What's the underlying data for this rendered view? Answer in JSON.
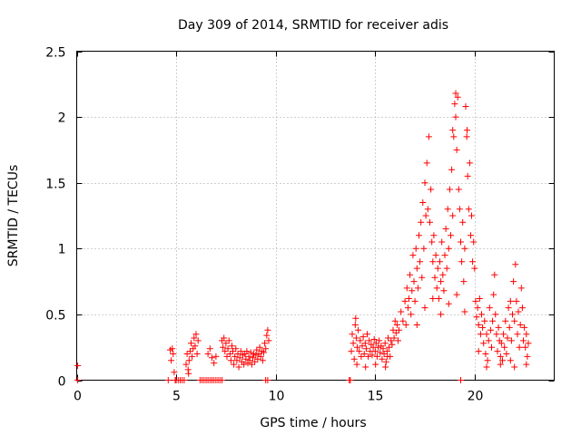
{
  "chart_data": {
    "type": "scatter",
    "title": "Day 309 of 2014, SRMTID for receiver adis",
    "xlabel": "GPS time / hours",
    "ylabel": "SRMTID / TECUs",
    "xlim": [
      0,
      24
    ],
    "ylim": [
      0,
      2.5
    ],
    "xticks": [
      0,
      5,
      10,
      15,
      20
    ],
    "yticks": [
      0,
      0.5,
      1,
      1.5,
      2,
      2.5
    ],
    "xtick_labels": [
      "0",
      "5",
      "10",
      "15",
      "20"
    ],
    "ytick_labels": [
      "0",
      "0.5",
      "1",
      "1.5",
      "2",
      "2.5"
    ],
    "grid": true,
    "marker": "+",
    "color": "#ff0000",
    "series": [
      {
        "name": "SRMTID",
        "points": [
          [
            0.05,
            0.11
          ],
          [
            0.05,
            0.0
          ],
          [
            4.6,
            0.0
          ],
          [
            4.7,
            0.23
          ],
          [
            4.75,
            0.15
          ],
          [
            4.8,
            0.24
          ],
          [
            4.85,
            0.2
          ],
          [
            4.9,
            0.06
          ],
          [
            4.95,
            0.0
          ],
          [
            5.0,
            0.0
          ],
          [
            5.1,
            0.0
          ],
          [
            5.2,
            0.0
          ],
          [
            5.3,
            0.0
          ],
          [
            5.4,
            0.0
          ],
          [
            5.5,
            0.12
          ],
          [
            5.55,
            0.2
          ],
          [
            5.6,
            0.08
          ],
          [
            5.65,
            0.15
          ],
          [
            5.7,
            0.22
          ],
          [
            5.75,
            0.28
          ],
          [
            5.8,
            0.18
          ],
          [
            5.85,
            0.24
          ],
          [
            5.9,
            0.32
          ],
          [
            5.95,
            0.26
          ],
          [
            6.0,
            0.35
          ],
          [
            6.05,
            0.2
          ],
          [
            6.1,
            0.3
          ],
          [
            5.62,
            0.05
          ],
          [
            6.2,
            0.0
          ],
          [
            6.3,
            0.0
          ],
          [
            6.4,
            0.0
          ],
          [
            6.5,
            0.0
          ],
          [
            6.6,
            0.0
          ],
          [
            6.7,
            0.0
          ],
          [
            6.8,
            0.0
          ],
          [
            6.9,
            0.0
          ],
          [
            7.0,
            0.0
          ],
          [
            7.1,
            0.0
          ],
          [
            7.2,
            0.0
          ],
          [
            7.3,
            0.0
          ],
          [
            6.6,
            0.2
          ],
          [
            6.7,
            0.24
          ],
          [
            6.8,
            0.17
          ],
          [
            6.9,
            0.13
          ],
          [
            7.0,
            0.18
          ],
          [
            7.3,
            0.3
          ],
          [
            7.35,
            0.25
          ],
          [
            7.4,
            0.32
          ],
          [
            7.45,
            0.22
          ],
          [
            7.5,
            0.28
          ],
          [
            7.55,
            0.18
          ],
          [
            7.6,
            0.24
          ],
          [
            7.65,
            0.3
          ],
          [
            7.7,
            0.2
          ],
          [
            7.75,
            0.15
          ],
          [
            7.8,
            0.26
          ],
          [
            7.85,
            0.22
          ],
          [
            7.9,
            0.12
          ],
          [
            7.95,
            0.18
          ],
          [
            8.0,
            0.24
          ],
          [
            8.05,
            0.15
          ],
          [
            8.1,
            0.2
          ],
          [
            8.15,
            0.1
          ],
          [
            8.2,
            0.17
          ],
          [
            8.25,
            0.22
          ],
          [
            8.3,
            0.14
          ],
          [
            8.35,
            0.19
          ],
          [
            8.4,
            0.12
          ],
          [
            8.45,
            0.2
          ],
          [
            8.5,
            0.16
          ],
          [
            8.55,
            0.22
          ],
          [
            8.6,
            0.13
          ],
          [
            8.65,
            0.18
          ],
          [
            8.7,
            0.15
          ],
          [
            8.75,
            0.21
          ],
          [
            8.8,
            0.12
          ],
          [
            8.85,
            0.17
          ],
          [
            8.9,
            0.2
          ],
          [
            8.95,
            0.14
          ],
          [
            9.0,
            0.19
          ],
          [
            9.05,
            0.23
          ],
          [
            9.1,
            0.16
          ],
          [
            9.15,
            0.2
          ],
          [
            9.2,
            0.25
          ],
          [
            9.25,
            0.18
          ],
          [
            9.3,
            0.22
          ],
          [
            9.35,
            0.15
          ],
          [
            9.4,
            0.21
          ],
          [
            9.45,
            0.28
          ],
          [
            9.5,
            0.24
          ],
          [
            9.55,
            0.34
          ],
          [
            9.6,
            0.38
          ],
          [
            9.65,
            0.3
          ],
          [
            9.5,
            0.0
          ],
          [
            9.6,
            0.0
          ],
          [
            13.7,
            0.0
          ],
          [
            13.75,
            0.0
          ],
          [
            13.8,
            0.22
          ],
          [
            13.85,
            0.35
          ],
          [
            13.9,
            0.28
          ],
          [
            13.95,
            0.16
          ],
          [
            14.0,
            0.42
          ],
          [
            14.05,
            0.32
          ],
          [
            14.1,
            0.25
          ],
          [
            14.15,
            0.38
          ],
          [
            14.2,
            0.22
          ],
          [
            14.25,
            0.3
          ],
          [
            14.3,
            0.18
          ],
          [
            14.35,
            0.26
          ],
          [
            14.4,
            0.33
          ],
          [
            14.45,
            0.2
          ],
          [
            14.5,
            0.28
          ],
          [
            14.55,
            0.24
          ],
          [
            14.6,
            0.35
          ],
          [
            14.65,
            0.18
          ],
          [
            14.7,
            0.3
          ],
          [
            14.75,
            0.22
          ],
          [
            14.8,
            0.27
          ],
          [
            14.85,
            0.19
          ],
          [
            14.9,
            0.25
          ],
          [
            14.95,
            0.31
          ],
          [
            15.0,
            0.22
          ],
          [
            15.05,
            0.28
          ],
          [
            15.1,
            0.18
          ],
          [
            15.15,
            0.25
          ],
          [
            15.2,
            0.3
          ],
          [
            15.25,
            0.21
          ],
          [
            15.3,
            0.26
          ],
          [
            15.35,
            0.16
          ],
          [
            15.4,
            0.24
          ],
          [
            15.45,
            0.2
          ],
          [
            15.5,
            0.28
          ],
          [
            15.55,
            0.14
          ],
          [
            15.6,
            0.22
          ],
          [
            15.65,
            0.32
          ],
          [
            15.7,
            0.25
          ],
          [
            15.75,
            0.18
          ],
          [
            15.8,
            0.3
          ],
          [
            15.85,
            0.27
          ],
          [
            15.9,
            0.38
          ],
          [
            15.95,
            0.32
          ],
          [
            16.0,
            0.45
          ],
          [
            16.05,
            0.36
          ],
          [
            16.1,
            0.42
          ],
          [
            16.15,
            0.3
          ],
          [
            14.02,
            0.47
          ],
          [
            14.08,
            0.12
          ],
          [
            14.52,
            0.1
          ],
          [
            15.02,
            0.12
          ],
          [
            15.52,
            0.1
          ],
          [
            15.62,
            0.18
          ],
          [
            16.2,
            0.38
          ],
          [
            16.3,
            0.52
          ],
          [
            16.4,
            0.45
          ],
          [
            16.5,
            0.6
          ],
          [
            16.55,
            0.42
          ],
          [
            16.6,
            0.7
          ],
          [
            16.65,
            0.55
          ],
          [
            16.7,
            0.62
          ],
          [
            16.75,
            0.8
          ],
          [
            16.8,
            0.5
          ],
          [
            16.85,
            0.68
          ],
          [
            16.9,
            0.95
          ],
          [
            16.95,
            0.75
          ],
          [
            17.0,
            0.6
          ],
          [
            17.05,
            1.0
          ],
          [
            17.1,
            0.85
          ],
          [
            17.15,
            0.7
          ],
          [
            17.2,
            1.1
          ],
          [
            17.25,
            0.9
          ],
          [
            17.3,
            1.2
          ],
          [
            17.35,
            0.78
          ],
          [
            17.4,
            1.35
          ],
          [
            17.45,
            1.0
          ],
          [
            17.5,
            1.5
          ],
          [
            17.55,
            1.25
          ],
          [
            17.6,
            1.65
          ],
          [
            17.65,
            1.3
          ],
          [
            17.7,
            1.85
          ],
          [
            17.75,
            1.2
          ],
          [
            17.8,
            1.45
          ],
          [
            17.85,
            1.05
          ],
          [
            17.9,
            0.9
          ],
          [
            17.95,
            1.1
          ],
          [
            18.0,
            0.78
          ],
          [
            18.05,
            0.95
          ],
          [
            18.1,
            0.7
          ],
          [
            18.15,
            0.85
          ],
          [
            18.2,
            0.62
          ],
          [
            18.25,
            0.9
          ],
          [
            18.3,
            0.75
          ],
          [
            18.35,
            1.05
          ],
          [
            18.4,
            0.8
          ],
          [
            18.45,
            0.68
          ],
          [
            18.5,
            0.95
          ],
          [
            18.55,
            1.15
          ],
          [
            18.6,
            0.85
          ],
          [
            18.65,
            1.3
          ],
          [
            18.7,
            1.0
          ],
          [
            18.75,
            1.45
          ],
          [
            18.8,
            1.1
          ],
          [
            18.85,
            1.6
          ],
          [
            18.9,
            1.25
          ],
          [
            18.95,
            1.85
          ],
          [
            19.0,
            2.1
          ],
          [
            19.05,
            2.0
          ],
          [
            19.1,
            1.75
          ],
          [
            19.15,
            2.15
          ],
          [
            19.2,
            1.45
          ],
          [
            19.25,
            1.3
          ],
          [
            19.3,
            1.05
          ],
          [
            19.35,
            0.9
          ],
          [
            19.4,
            1.2
          ],
          [
            19.45,
            0.75
          ],
          [
            19.5,
            1.0
          ],
          [
            19.55,
            2.08
          ],
          [
            19.6,
            1.85
          ],
          [
            19.65,
            1.55
          ],
          [
            19.7,
            1.3
          ],
          [
            19.75,
            1.65
          ],
          [
            19.8,
            1.1
          ],
          [
            19.85,
            1.25
          ],
          [
            19.9,
            0.9
          ],
          [
            19.95,
            1.05
          ],
          [
            20.0,
            0.85
          ],
          [
            19.05,
            2.18
          ],
          [
            18.9,
            1.9
          ],
          [
            19.62,
            1.9
          ],
          [
            17.1,
            0.42
          ],
          [
            17.5,
            0.55
          ],
          [
            17.9,
            0.62
          ],
          [
            18.3,
            0.5
          ],
          [
            18.7,
            0.58
          ],
          [
            19.1,
            0.65
          ],
          [
            19.5,
            0.52
          ],
          [
            20.05,
            0.6
          ],
          [
            20.1,
            0.48
          ],
          [
            20.15,
            0.55
          ],
          [
            20.2,
            0.42
          ],
          [
            20.25,
            0.62
          ],
          [
            20.3,
            0.35
          ],
          [
            20.35,
            0.5
          ],
          [
            20.4,
            0.4
          ],
          [
            20.45,
            0.28
          ],
          [
            20.5,
            0.45
          ],
          [
            20.55,
            0.2
          ],
          [
            20.6,
            0.35
          ],
          [
            20.65,
            0.15
          ],
          [
            20.7,
            0.3
          ],
          [
            20.75,
            0.55
          ],
          [
            20.8,
            0.38
          ],
          [
            20.85,
            0.25
          ],
          [
            20.9,
            0.45
          ],
          [
            20.95,
            0.65
          ],
          [
            21.0,
            0.8
          ],
          [
            21.05,
            0.5
          ],
          [
            21.1,
            0.35
          ],
          [
            21.15,
            0.22
          ],
          [
            21.2,
            0.4
          ],
          [
            21.25,
            0.3
          ],
          [
            21.3,
            0.18
          ],
          [
            21.35,
            0.28
          ],
          [
            21.4,
            0.15
          ],
          [
            21.45,
            0.35
          ],
          [
            21.5,
            0.25
          ],
          [
            21.55,
            0.45
          ],
          [
            21.6,
            0.2
          ],
          [
            21.65,
            0.32
          ],
          [
            21.7,
            0.55
          ],
          [
            21.75,
            0.4
          ],
          [
            21.8,
            0.6
          ],
          [
            21.85,
            0.3
          ],
          [
            21.9,
            0.5
          ],
          [
            21.95,
            0.75
          ],
          [
            22.0,
            0.45
          ],
          [
            22.05,
            0.88
          ],
          [
            22.1,
            0.6
          ],
          [
            22.15,
            0.35
          ],
          [
            22.2,
            0.52
          ],
          [
            22.25,
            0.25
          ],
          [
            22.3,
            0.42
          ],
          [
            22.35,
            0.7
          ],
          [
            22.4,
            0.55
          ],
          [
            22.45,
            0.3
          ],
          [
            22.5,
            0.4
          ],
          [
            22.55,
            0.25
          ],
          [
            22.6,
            0.35
          ],
          [
            22.65,
            0.18
          ],
          [
            22.7,
            0.28
          ],
          [
            20.6,
            0.1
          ],
          [
            21.3,
            0.12
          ],
          [
            22.0,
            0.1
          ],
          [
            22.6,
            0.12
          ],
          [
            20.2,
            0.22
          ],
          [
            21.8,
            0.15
          ],
          [
            19.3,
            0.0
          ]
        ]
      }
    ]
  }
}
